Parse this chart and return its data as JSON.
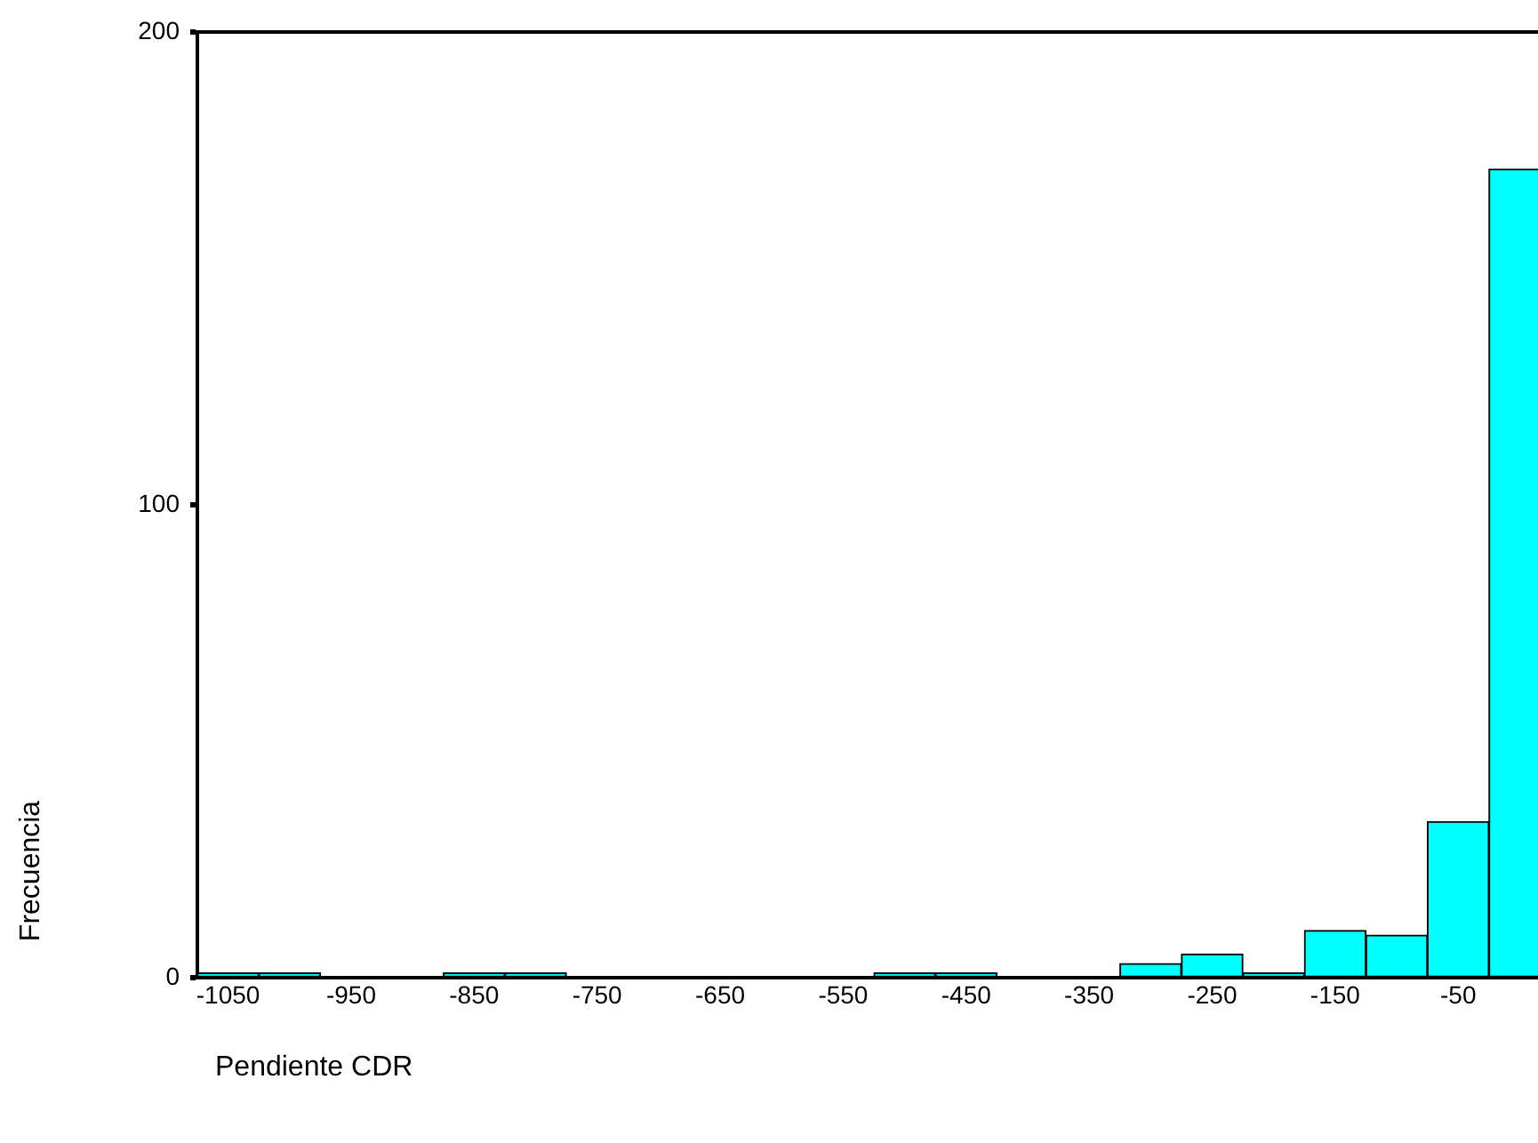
{
  "chart_data": {
    "type": "histogram",
    "xlabel": "Pendiente CDR",
    "ylabel": "Frecuencia",
    "bins": [
      -1075,
      -1025,
      -975,
      -925,
      -875,
      -825,
      -775,
      -725,
      -675,
      -625,
      -575,
      -525,
      -475,
      -425,
      -375,
      -325,
      -275,
      -225,
      -175,
      -125,
      -75,
      -25,
      25
    ],
    "values": [
      1,
      1,
      0,
      0,
      1,
      1,
      0,
      0,
      0,
      0,
      0,
      1,
      1,
      0,
      0,
      3,
      5,
      1,
      10,
      9,
      33,
      171
    ],
    "color": "#00ffff",
    "xlim": [
      -1075,
      25
    ],
    "xticks": [
      -1050,
      -950,
      -850,
      -750,
      -650,
      -550,
      -450,
      -350,
      -250,
      -150,
      -50
    ],
    "ylim": [
      0,
      200
    ],
    "yticks": [
      0,
      100,
      200
    ],
    "grid": false,
    "legend": false
  }
}
